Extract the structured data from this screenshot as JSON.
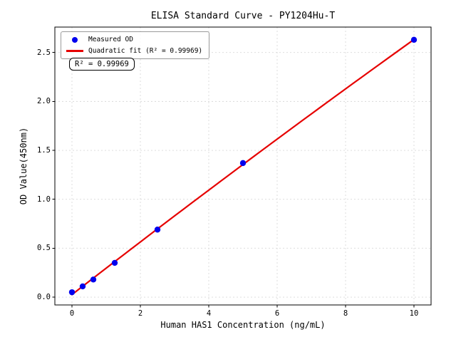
{
  "chart_data": {
    "type": "scatter",
    "title": "ELISA Standard Curve - PY1204Hu-T",
    "xlabel": "Human HAS1 Concentration (ng/mL)",
    "ylabel": "OD Value(450nm)",
    "xlim": [
      -0.5,
      10.5
    ],
    "ylim": [
      -0.08,
      2.76
    ],
    "xticks": [
      0,
      2,
      4,
      6,
      8,
      10
    ],
    "xtick_labels": [
      "0",
      "2",
      "4",
      "6",
      "8",
      "10"
    ],
    "yticks": [
      0.0,
      0.5,
      1.0,
      1.5,
      2.0,
      2.5
    ],
    "ytick_labels": [
      "0.0",
      "0.5",
      "1.0",
      "1.5",
      "2.0",
      "2.5"
    ],
    "grid": true,
    "grid_style": "dashed",
    "legend_position": "upper left",
    "series": [
      {
        "name": "Measured OD",
        "type": "scatter",
        "color": "#0000ee",
        "x": [
          0,
          0.3125,
          0.625,
          1.25,
          2.5,
          5,
          10
        ],
        "y": [
          0.05,
          0.11,
          0.18,
          0.35,
          0.69,
          1.37,
          2.63
        ]
      },
      {
        "name": "Quadratic fit (R² = 0.99969)",
        "type": "line",
        "color": "#e60000",
        "fit": {
          "kind": "quadratic",
          "a": 0.0259,
          "b": 0.2711,
          "c": -0.00104,
          "x_start": 0,
          "x_end": 10
        },
        "r_squared": 0.99969
      }
    ],
    "annotation": {
      "text": "R² = 0.99969"
    },
    "colors": {
      "marker": "#0000ee",
      "fit_line": "#e60000",
      "grid": "#d9d9d9",
      "frame": "#000000",
      "background": "#ffffff"
    }
  }
}
